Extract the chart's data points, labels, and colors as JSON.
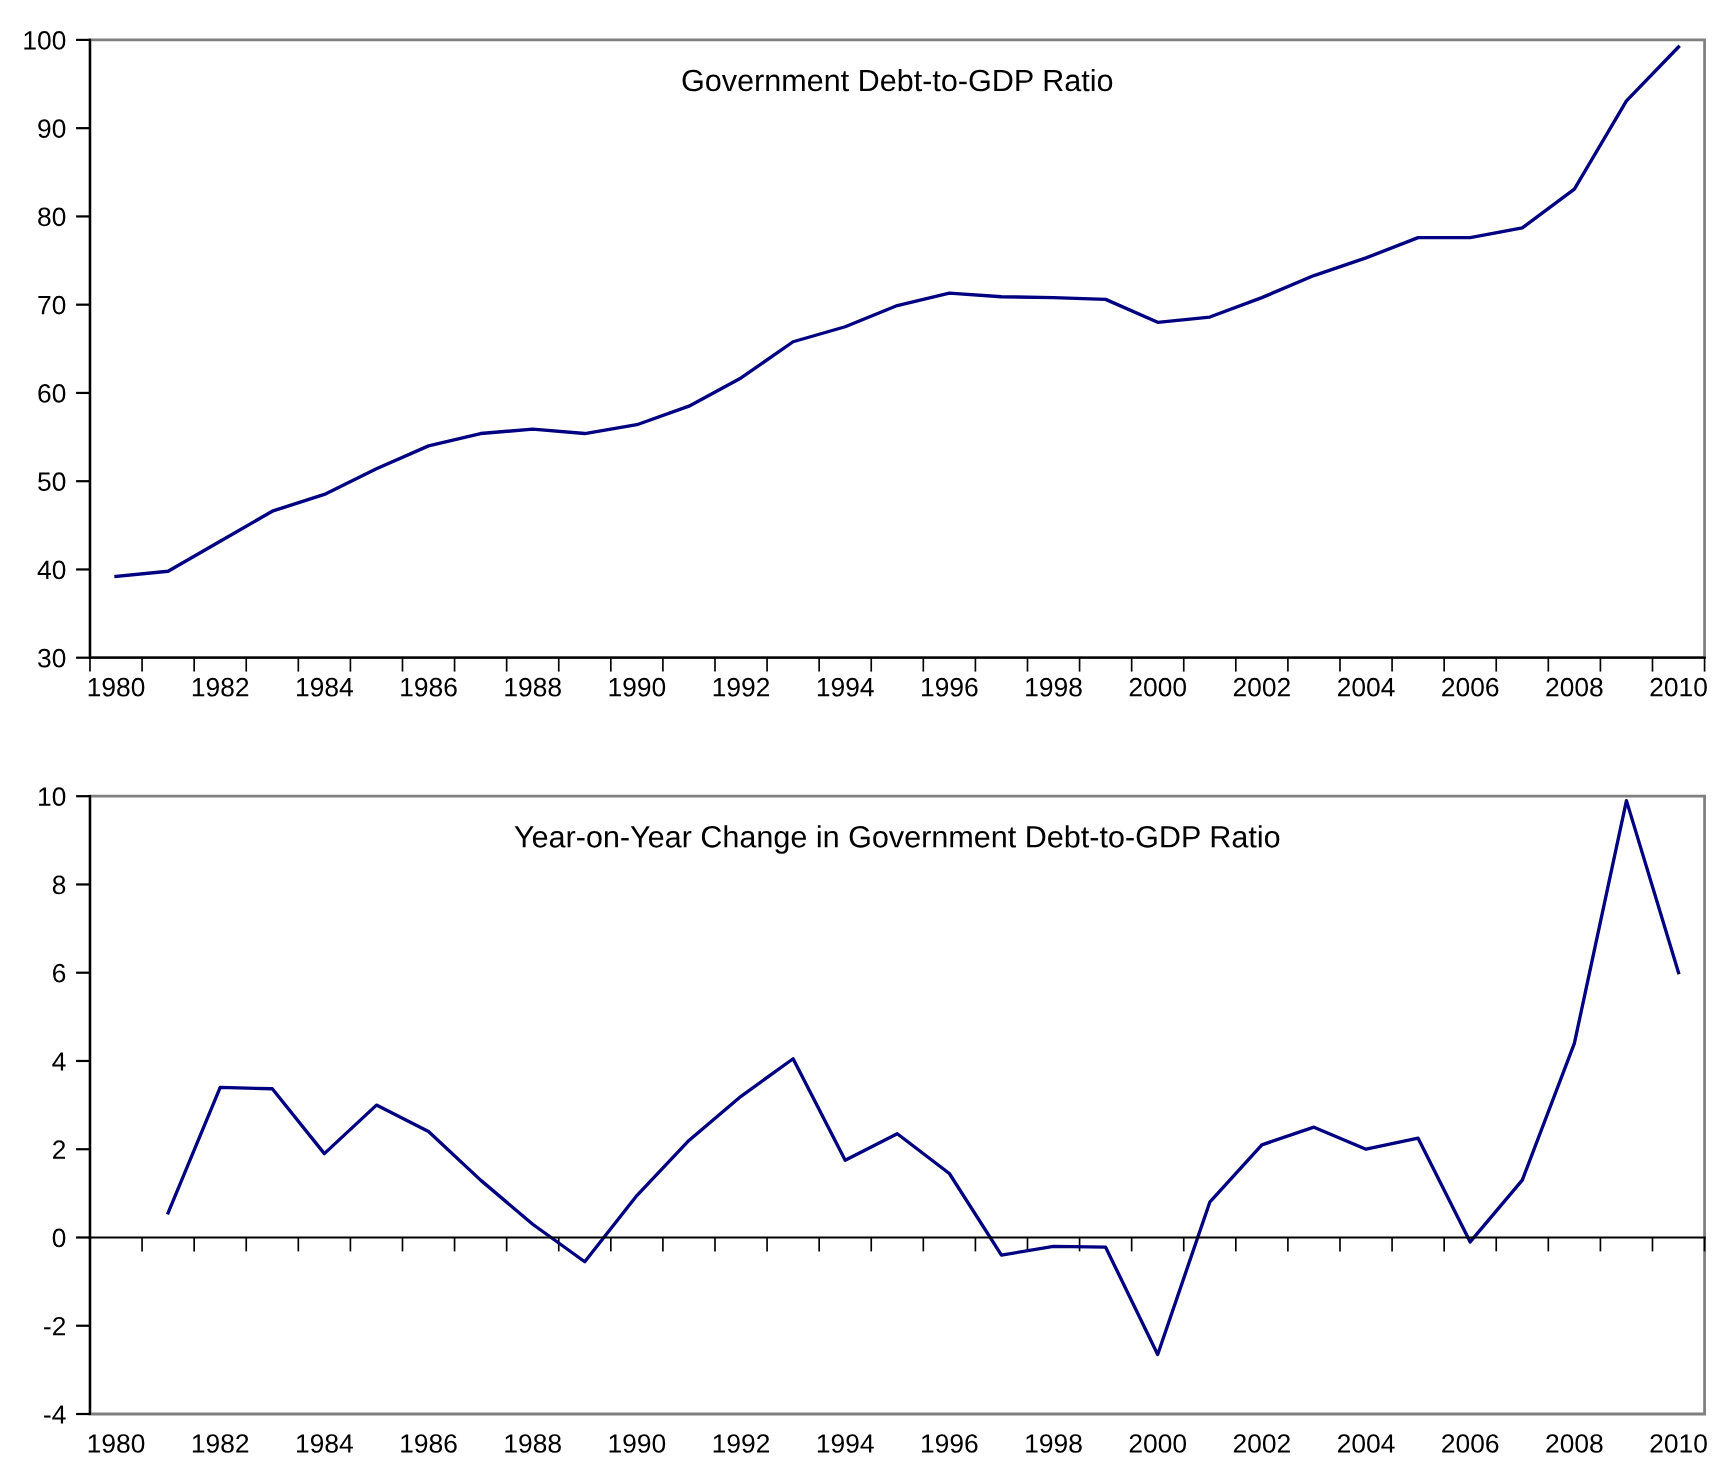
{
  "chart_data": [
    {
      "type": "line",
      "title": "Government Debt-to-GDP Ratio",
      "categories": [
        "1980",
        null,
        "1982",
        null,
        "1984",
        null,
        "1986",
        null,
        "1988",
        null,
        "1990",
        null,
        "1992",
        null,
        "1994",
        null,
        "1996",
        null,
        "1998",
        null,
        "2000",
        null,
        "2002",
        null,
        "2004",
        null,
        "2006",
        null,
        "2008",
        null,
        "2010"
      ],
      "series": [
        {
          "color": "#000080",
          "values": [
            39.2,
            39.8,
            43.2,
            46.6,
            48.5,
            51.4,
            54.0,
            55.4,
            55.9,
            55.4,
            56.4,
            58.5,
            61.7,
            65.8,
            67.5,
            69.9,
            71.3,
            70.9,
            70.8,
            70.6,
            68.0,
            68.6,
            70.8,
            73.3,
            75.3,
            77.6,
            77.6,
            78.7,
            83.1,
            93.1,
            99.2
          ]
        }
      ],
      "ylim": [
        30,
        100
      ],
      "yticks": [
        30,
        40,
        50,
        60,
        70,
        80,
        90,
        100
      ],
      "marker": "none",
      "line_style": "solid"
    },
    {
      "type": "line",
      "title": "Year-on-Year Change in Government Debt-to-GDP Ratio",
      "categories": [
        "1980",
        null,
        "1982",
        null,
        "1984",
        null,
        "1986",
        null,
        "1988",
        null,
        "1990",
        null,
        "1992",
        null,
        "1994",
        null,
        "1996",
        null,
        "1998",
        null,
        "2000",
        null,
        "2002",
        null,
        "2004",
        null,
        "2006",
        null,
        "2008",
        null,
        "2010"
      ],
      "series": [
        {
          "color": "#000080",
          "values": [
            null,
            0.56,
            3.4,
            3.37,
            1.9,
            3.0,
            2.4,
            1.3,
            0.3,
            -0.55,
            0.95,
            2.2,
            3.2,
            4.05,
            1.75,
            2.35,
            1.45,
            -0.4,
            -0.2,
            -0.22,
            -2.65,
            0.8,
            2.1,
            2.5,
            2.0,
            2.25,
            -0.1,
            1.3,
            4.4,
            9.9,
            6.0
          ]
        }
      ],
      "ylim": [
        -4,
        10
      ],
      "yticks": [
        -4,
        -2,
        0,
        2,
        4,
        6,
        8,
        10
      ],
      "marker": "none",
      "line_style": "solid"
    }
  ]
}
